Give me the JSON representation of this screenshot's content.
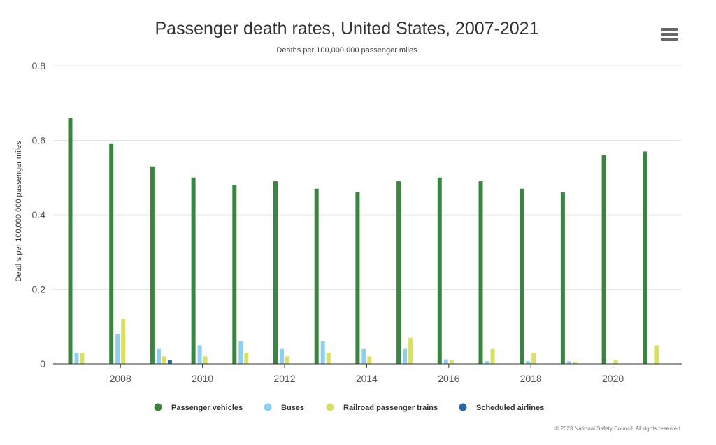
{
  "chart_data": {
    "type": "bar",
    "title": "Passenger death rates, United States, 2007-2021",
    "subtitle": "Deaths per 100,000,000 passenger miles",
    "ylabel": "Deaths per 100,000,000 passenger miles",
    "xlabel": "",
    "ylim": [
      0,
      0.8
    ],
    "yticks": [
      0,
      0.2,
      0.4,
      0.6,
      0.8
    ],
    "ytick_labels": [
      "0",
      "0.2",
      "0.4",
      "0.6",
      "0.8"
    ],
    "categories": [
      2007,
      2008,
      2009,
      2010,
      2011,
      2012,
      2013,
      2014,
      2015,
      2016,
      2017,
      2018,
      2019,
      2020,
      2021
    ],
    "xtick_labels": [
      "2008",
      "2010",
      "2012",
      "2014",
      "2016",
      "2018",
      "2020"
    ],
    "grid": true,
    "legend_position": "bottom-center",
    "series": [
      {
        "name": "Passenger vehicles",
        "color": "#3a8540",
        "values": [
          0.66,
          0.59,
          0.53,
          0.5,
          0.48,
          0.49,
          0.47,
          0.46,
          0.49,
          0.5,
          0.49,
          0.47,
          0.46,
          0.56,
          0.57
        ]
      },
      {
        "name": "Buses",
        "color": "#8ccfee",
        "values": [
          0.03,
          0.08,
          0.04,
          0.05,
          0.06,
          0.04,
          0.06,
          0.04,
          0.04,
          0.012,
          0.007,
          0.007,
          0.007,
          0,
          0
        ]
      },
      {
        "name": "Railroad passenger trains",
        "color": "#d8e163",
        "values": [
          0.03,
          0.12,
          0.02,
          0.02,
          0.03,
          0.02,
          0.03,
          0.02,
          0.07,
          0.01,
          0.04,
          0.03,
          0.005,
          0.01,
          0.05
        ]
      },
      {
        "name": "Scheduled airlines",
        "color": "#2a6aa8",
        "values": [
          0,
          0,
          0.01,
          0,
          0,
          0,
          0,
          0,
          0,
          0,
          0,
          0,
          0,
          0,
          0
        ]
      }
    ]
  },
  "credit": "© 2023 National Safety Council. All rights reserved.",
  "menu_icon": "hamburger-menu-icon"
}
